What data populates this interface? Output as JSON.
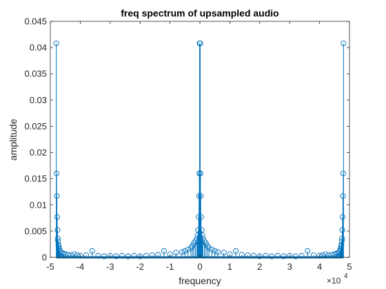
{
  "chart_data": {
    "type": "stem",
    "title": "freq spectrum of upsampled audio",
    "xlabel": "frequency",
    "ylabel": "amplitude",
    "x_exponent_label": {
      "base": "×10",
      "power": "4"
    },
    "x_scale_factor": 10000,
    "xlim": [
      -5,
      5
    ],
    "ylim": [
      0,
      0.045
    ],
    "xticks": [
      -5,
      -4,
      -3,
      -2,
      -1,
      0,
      1,
      2,
      3,
      4,
      5
    ],
    "xtick_labels": [
      "-5",
      "-4",
      "-3",
      "-2",
      "-1",
      "0",
      "1",
      "2",
      "3",
      "4",
      "5"
    ],
    "yticks": [
      0,
      0.005,
      0.01,
      0.015,
      0.02,
      0.025,
      0.03,
      0.035,
      0.04,
      0.045
    ],
    "ytick_labels": [
      "0",
      "0.005",
      "0.01",
      "0.015",
      "0.02",
      "0.025",
      "0.03",
      "0.035",
      "0.04",
      "0.045"
    ],
    "grid": false,
    "marker": "open-circle",
    "color": "#0072BD",
    "x": [
      -4.8,
      -4.79,
      -4.78,
      -4.77,
      -4.76,
      -4.75,
      -4.74,
      -4.73,
      -4.72,
      -4.71,
      -4.7,
      -4.68,
      -4.65,
      -4.6,
      -4.55,
      -4.5,
      -4.4,
      -4.3,
      -4.2,
      -4.1,
      -4.0,
      -3.8,
      -3.6,
      -3.4,
      -3.2,
      -3.0,
      -2.8,
      -2.6,
      -2.4,
      -2.2,
      -2.0,
      -1.8,
      -1.6,
      -1.4,
      -1.2,
      -1.0,
      -0.8,
      -0.6,
      -0.5,
      -0.4,
      -0.3,
      -0.25,
      -0.2,
      -0.15,
      -0.1,
      -0.08,
      -0.06,
      -0.04,
      -0.03,
      -0.02,
      -0.01,
      0.0,
      0.01,
      0.02,
      0.03,
      0.04,
      0.06,
      0.08,
      0.1,
      0.15,
      0.2,
      0.25,
      0.3,
      0.4,
      0.5,
      0.6,
      0.8,
      1.0,
      1.2,
      1.4,
      1.6,
      1.8,
      2.0,
      2.2,
      2.4,
      2.6,
      2.8,
      3.0,
      3.2,
      3.4,
      3.6,
      3.8,
      4.0,
      4.1,
      4.2,
      4.3,
      4.4,
      4.5,
      4.55,
      4.6,
      4.65,
      4.68,
      4.7,
      4.71,
      4.72,
      4.73,
      4.74,
      4.75,
      4.76,
      4.77,
      4.78,
      4.79,
      4.8
    ],
    "y": [
      0.0408,
      0.016,
      0.0117,
      0.0077,
      0.0052,
      0.0036,
      0.0031,
      0.0024,
      0.0021,
      0.0018,
      0.0015,
      0.0012,
      0.001,
      0.0008,
      0.0007,
      0.0006,
      0.0005,
      0.0004,
      0.0006,
      0.0004,
      0.0003,
      0.0004,
      0.0012,
      0.0003,
      0.0002,
      0.0003,
      0.0002,
      0.0003,
      0.0002,
      0.0003,
      0.0002,
      0.0003,
      0.0004,
      0.0005,
      0.0012,
      0.0006,
      0.0009,
      0.001,
      0.0012,
      0.0015,
      0.0018,
      0.0022,
      0.0027,
      0.0031,
      0.0036,
      0.0042,
      0.0052,
      0.0077,
      0.0117,
      0.016,
      0.0408,
      0.0408,
      0.0408,
      0.016,
      0.0117,
      0.0077,
      0.0052,
      0.0042,
      0.0036,
      0.0031,
      0.0027,
      0.0022,
      0.0018,
      0.0015,
      0.0012,
      0.001,
      0.0009,
      0.0006,
      0.0012,
      0.0005,
      0.0004,
      0.0003,
      0.0002,
      0.0003,
      0.0002,
      0.0003,
      0.0002,
      0.0003,
      0.0002,
      0.0003,
      0.0012,
      0.0004,
      0.0003,
      0.0004,
      0.0006,
      0.0004,
      0.0005,
      0.0006,
      0.0007,
      0.0008,
      0.001,
      0.0012,
      0.0015,
      0.0018,
      0.0021,
      0.0024,
      0.0031,
      0.0036,
      0.0052,
      0.0077,
      0.0117,
      0.016,
      0.0408
    ]
  }
}
